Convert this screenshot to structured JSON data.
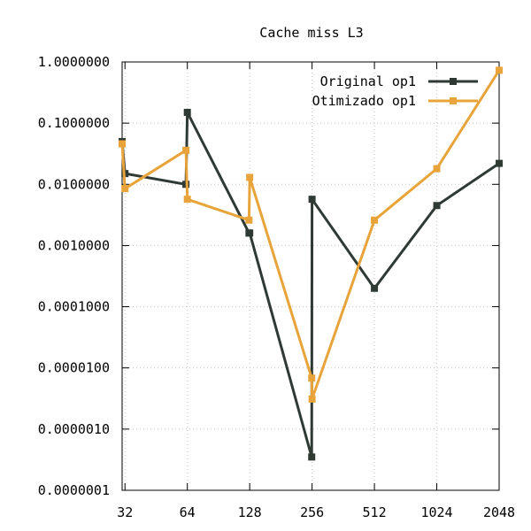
{
  "chart_data": {
    "type": "line",
    "title": "Cache miss L3",
    "xlabel": "",
    "ylabel": "",
    "x_scale": "log2",
    "y_scale": "log10",
    "xlim": [
      31,
      2048
    ],
    "ylim": [
      1e-07,
      1.0
    ],
    "x_ticks": [
      32,
      64,
      128,
      256,
      512,
      1024,
      2048
    ],
    "x_tick_labels": [
      "32",
      "64",
      "128",
      "256",
      "512",
      "1024",
      "2048"
    ],
    "y_ticks": [
      1e-07,
      1e-06,
      1e-05,
      0.0001,
      0.001,
      0.01,
      0.1,
      1.0
    ],
    "y_tick_labels": [
      "0.0000001",
      "0.0000010",
      "0.0000100",
      "0.0001000",
      "0.0010000",
      "0.0100000",
      "0.1000000",
      "1.0000000"
    ],
    "grid": true,
    "legend_position": "top-right",
    "series": [
      {
        "name": "Original op1",
        "color": "#2f3a35",
        "points": [
          [
            31,
            0.05
          ],
          [
            32,
            0.015
          ],
          [
            63,
            0.01
          ],
          [
            64,
            0.15
          ],
          [
            127,
            0.0016
          ],
          [
            128,
            0.0016
          ],
          [
            255,
            3.5e-07
          ],
          [
            256,
            0.0057
          ],
          [
            512,
            0.0002
          ],
          [
            1024,
            0.0045
          ],
          [
            2048,
            0.022
          ]
        ]
      },
      {
        "name": "Otimizado op1",
        "color": "#e8a43a",
        "points": [
          [
            31,
            0.046
          ],
          [
            32,
            0.0085
          ],
          [
            63,
            0.036
          ],
          [
            64,
            0.0057
          ],
          [
            127,
            0.0026
          ],
          [
            128,
            0.013
          ],
          [
            255,
            6.8e-06
          ],
          [
            256,
            3.1e-06
          ],
          [
            512,
            0.0026
          ],
          [
            1024,
            0.018
          ],
          [
            2048,
            0.73
          ]
        ]
      }
    ]
  }
}
